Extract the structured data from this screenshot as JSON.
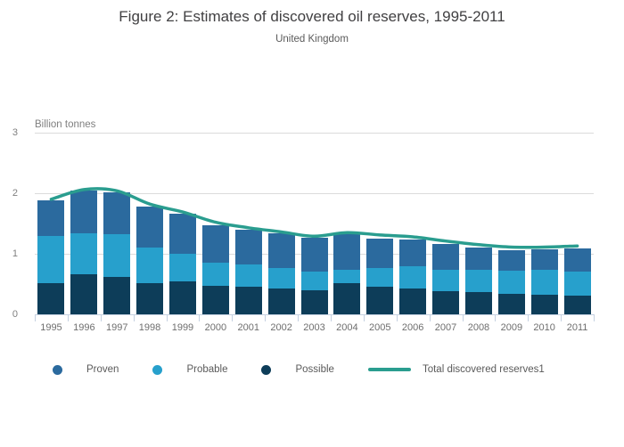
{
  "chart_data": {
    "type": "bar",
    "stacked": true,
    "title": "Figure 2: Estimates of discovered oil reserves, 1995-2011",
    "subtitle": "United Kingdom",
    "ylabel": "Billion tonnes",
    "xlabel": "",
    "ylim": [
      0,
      3
    ],
    "yticks": [
      0,
      1,
      2,
      3
    ],
    "grid": true,
    "legend_position": "bottom",
    "categories": [
      "1995",
      "1996",
      "1997",
      "1998",
      "1999",
      "2000",
      "2001",
      "2002",
      "2003",
      "2004",
      "2005",
      "2006",
      "2007",
      "2008",
      "2009",
      "2010",
      "2011"
    ],
    "series": [
      {
        "name": "Proven",
        "color": "#2B6A9E",
        "values": [
          0.6,
          0.7,
          0.69,
          0.68,
          0.66,
          0.61,
          0.58,
          0.58,
          0.56,
          0.59,
          0.48,
          0.44,
          0.43,
          0.37,
          0.34,
          0.34,
          0.38
        ]
      },
      {
        "name": "Probable",
        "color": "#27A0CC",
        "values": [
          0.77,
          0.68,
          0.7,
          0.58,
          0.46,
          0.39,
          0.36,
          0.34,
          0.3,
          0.22,
          0.32,
          0.37,
          0.35,
          0.36,
          0.38,
          0.41,
          0.4
        ]
      },
      {
        "name": "Possible",
        "color": "#0D3D59",
        "values": [
          0.52,
          0.66,
          0.62,
          0.52,
          0.54,
          0.47,
          0.46,
          0.42,
          0.4,
          0.52,
          0.45,
          0.43,
          0.38,
          0.37,
          0.34,
          0.32,
          0.31
        ]
      }
    ],
    "stack_bottom_to_top": [
      "Possible",
      "Probable",
      "Proven"
    ],
    "line_series": {
      "name": "Total discovered reserves1",
      "color": "#2A9D8F",
      "values": [
        1.9,
        2.06,
        2.04,
        1.82,
        1.69,
        1.52,
        1.43,
        1.36,
        1.29,
        1.35,
        1.31,
        1.28,
        1.21,
        1.15,
        1.11,
        1.11,
        1.13
      ]
    }
  },
  "legend": {
    "items": [
      {
        "label": "Proven",
        "color": "#2B6A9E",
        "swatch": "dot"
      },
      {
        "label": "Probable",
        "color": "#27A0CC",
        "swatch": "dot"
      },
      {
        "label": "Possible",
        "color": "#0D3D59",
        "swatch": "dot"
      },
      {
        "label": "Total discovered reserves1",
        "color": "#2A9D8F",
        "swatch": "line"
      }
    ]
  },
  "colors": {
    "background": "#FFFFFF",
    "gridline": "#DBDBDB",
    "axis": "#C5D1E1",
    "title_text": "#414042",
    "subtitle_text": "#5A5A5A",
    "axis_label_text": "#7F7F7F",
    "year_label_text": "#6E6E6E",
    "legend_text": "#5A5A5A"
  }
}
